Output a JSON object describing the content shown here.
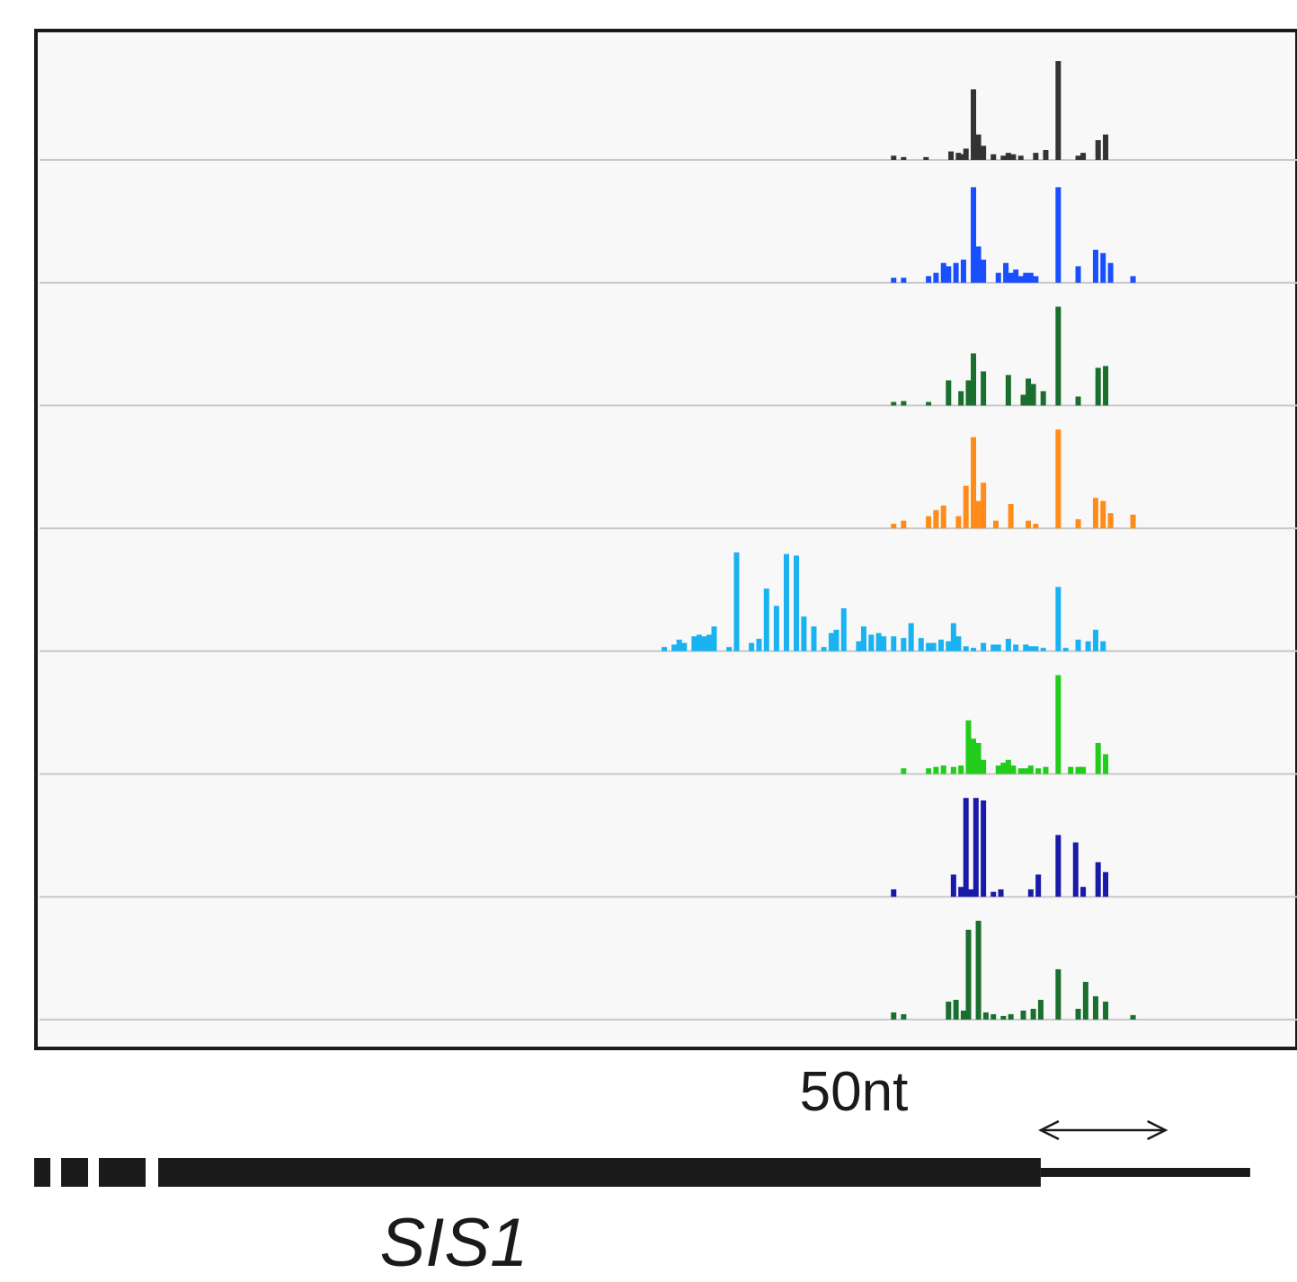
{
  "chart_data": {
    "type": "bar",
    "xlabel": "",
    "ylabel": "",
    "grid": false,
    "legend": "none",
    "x_range": [
      0,
      520
    ],
    "scale_bar": {
      "label": "50nt",
      "length_nt": 50,
      "start_nt": 403
    },
    "gene": {
      "name": "SIS1",
      "cds_end_nt": 403,
      "transcript_end_nt": 487
    },
    "tracks": [
      {
        "color": "#333333",
        "max": 70,
        "bars": [
          [
            344,
            3
          ],
          [
            348,
            2
          ],
          [
            357,
            2
          ],
          [
            367,
            6
          ],
          [
            370,
            5
          ],
          [
            372,
            4
          ],
          [
            373,
            8
          ],
          [
            376,
            50
          ],
          [
            378,
            18
          ],
          [
            380,
            10
          ],
          [
            384,
            4
          ],
          [
            388,
            3
          ],
          [
            390,
            5
          ],
          [
            392,
            4
          ],
          [
            395,
            3
          ],
          [
            401,
            5
          ],
          [
            405,
            7
          ],
          [
            410,
            70
          ],
          [
            418,
            3
          ],
          [
            420,
            5
          ],
          [
            426,
            14
          ],
          [
            429,
            18
          ]
        ]
      },
      {
        "color": "#1a4fff",
        "max": 60,
        "bars": [
          [
            344,
            3
          ],
          [
            348,
            3
          ],
          [
            358,
            4
          ],
          [
            361,
            6
          ],
          [
            364,
            12
          ],
          [
            366,
            10
          ],
          [
            369,
            12
          ],
          [
            372,
            14
          ],
          [
            376,
            58
          ],
          [
            378,
            22
          ],
          [
            380,
            14
          ],
          [
            386,
            6
          ],
          [
            389,
            12
          ],
          [
            391,
            6
          ],
          [
            393,
            8
          ],
          [
            395,
            4
          ],
          [
            397,
            6
          ],
          [
            399,
            6
          ],
          [
            401,
            4
          ],
          [
            410,
            58
          ],
          [
            418,
            10
          ],
          [
            425,
            20
          ],
          [
            428,
            18
          ],
          [
            431,
            12
          ],
          [
            440,
            4
          ]
        ]
      },
      {
        "color": "#1a6f2e",
        "max": 110,
        "bars": [
          [
            344,
            4
          ],
          [
            348,
            5
          ],
          [
            358,
            4
          ],
          [
            366,
            28
          ],
          [
            371,
            16
          ],
          [
            374,
            28
          ],
          [
            376,
            58
          ],
          [
            380,
            38
          ],
          [
            390,
            34
          ],
          [
            396,
            12
          ],
          [
            398,
            30
          ],
          [
            400,
            24
          ],
          [
            404,
            16
          ],
          [
            410,
            110
          ],
          [
            418,
            10
          ],
          [
            426,
            42
          ],
          [
            429,
            44
          ]
        ]
      },
      {
        "color": "#ff8c1a",
        "max": 65,
        "bars": [
          [
            344,
            3
          ],
          [
            348,
            5
          ],
          [
            358,
            8
          ],
          [
            361,
            12
          ],
          [
            364,
            15
          ],
          [
            370,
            8
          ],
          [
            373,
            28
          ],
          [
            376,
            60
          ],
          [
            378,
            18
          ],
          [
            380,
            30
          ],
          [
            385,
            5
          ],
          [
            391,
            16
          ],
          [
            398,
            5
          ],
          [
            401,
            3
          ],
          [
            410,
            65
          ],
          [
            418,
            6
          ],
          [
            425,
            20
          ],
          [
            428,
            18
          ],
          [
            431,
            10
          ],
          [
            440,
            9
          ]
        ]
      },
      {
        "color": "#1ab2f0",
        "max": 120,
        "bars": [
          [
            252,
            5
          ],
          [
            256,
            8
          ],
          [
            258,
            14
          ],
          [
            260,
            10
          ],
          [
            264,
            18
          ],
          [
            266,
            20
          ],
          [
            268,
            18
          ],
          [
            270,
            20
          ],
          [
            272,
            30
          ],
          [
            278,
            5
          ],
          [
            281,
            120
          ],
          [
            287,
            10
          ],
          [
            290,
            15
          ],
          [
            293,
            76
          ],
          [
            297,
            55
          ],
          [
            301,
            118
          ],
          [
            305,
            116
          ],
          [
            308,
            42
          ],
          [
            312,
            30
          ],
          [
            316,
            5
          ],
          [
            319,
            22
          ],
          [
            321,
            26
          ],
          [
            324,
            52
          ],
          [
            330,
            12
          ],
          [
            332,
            30
          ],
          [
            335,
            20
          ],
          [
            338,
            22
          ],
          [
            340,
            18
          ],
          [
            344,
            18
          ],
          [
            348,
            16
          ],
          [
            351,
            34
          ],
          [
            355,
            16
          ],
          [
            358,
            10
          ],
          [
            360,
            10
          ],
          [
            363,
            14
          ],
          [
            366,
            12
          ],
          [
            368,
            34
          ],
          [
            370,
            18
          ],
          [
            373,
            6
          ],
          [
            376,
            4
          ],
          [
            380,
            10
          ],
          [
            384,
            8
          ],
          [
            386,
            8
          ],
          [
            390,
            15
          ],
          [
            393,
            8
          ],
          [
            397,
            8
          ],
          [
            399,
            6
          ],
          [
            401,
            6
          ],
          [
            404,
            4
          ],
          [
            410,
            78
          ],
          [
            413,
            4
          ],
          [
            418,
            14
          ],
          [
            422,
            12
          ],
          [
            425,
            26
          ],
          [
            428,
            12
          ]
        ]
      },
      {
        "color": "#22cc1a",
        "max": 70,
        "bars": [
          [
            348,
            4
          ],
          [
            358,
            4
          ],
          [
            361,
            5
          ],
          [
            364,
            6
          ],
          [
            368,
            5
          ],
          [
            371,
            6
          ],
          [
            374,
            38
          ],
          [
            376,
            25
          ],
          [
            378,
            22
          ],
          [
            380,
            10
          ],
          [
            386,
            6
          ],
          [
            388,
            8
          ],
          [
            390,
            10
          ],
          [
            392,
            6
          ],
          [
            395,
            4
          ],
          [
            397,
            4
          ],
          [
            399,
            6
          ],
          [
            402,
            4
          ],
          [
            405,
            5
          ],
          [
            410,
            70
          ],
          [
            415,
            5
          ],
          [
            418,
            5
          ],
          [
            420,
            5
          ],
          [
            426,
            22
          ],
          [
            429,
            14
          ]
        ]
      },
      {
        "color": "#1a1aaa",
        "max": 80,
        "bars": [
          [
            344,
            6
          ],
          [
            368,
            18
          ],
          [
            371,
            8
          ],
          [
            373,
            80
          ],
          [
            375,
            6
          ],
          [
            377,
            80
          ],
          [
            380,
            78
          ],
          [
            384,
            4
          ],
          [
            387,
            6
          ],
          [
            399,
            6
          ],
          [
            402,
            18
          ],
          [
            410,
            50
          ],
          [
            417,
            44
          ],
          [
            420,
            8
          ],
          [
            426,
            28
          ],
          [
            429,
            20
          ]
        ]
      },
      {
        "color": "#1a6f2e",
        "max": 110,
        "bars": [
          [
            344,
            8
          ],
          [
            348,
            6
          ],
          [
            366,
            20
          ],
          [
            369,
            22
          ],
          [
            372,
            10
          ],
          [
            374,
            100
          ],
          [
            378,
            110
          ],
          [
            381,
            8
          ],
          [
            384,
            6
          ],
          [
            388,
            4
          ],
          [
            391,
            6
          ],
          [
            396,
            10
          ],
          [
            400,
            12
          ],
          [
            403,
            22
          ],
          [
            410,
            56
          ],
          [
            418,
            12
          ],
          [
            421,
            42
          ],
          [
            425,
            26
          ],
          [
            429,
            20
          ],
          [
            440,
            5
          ]
        ]
      }
    ]
  }
}
